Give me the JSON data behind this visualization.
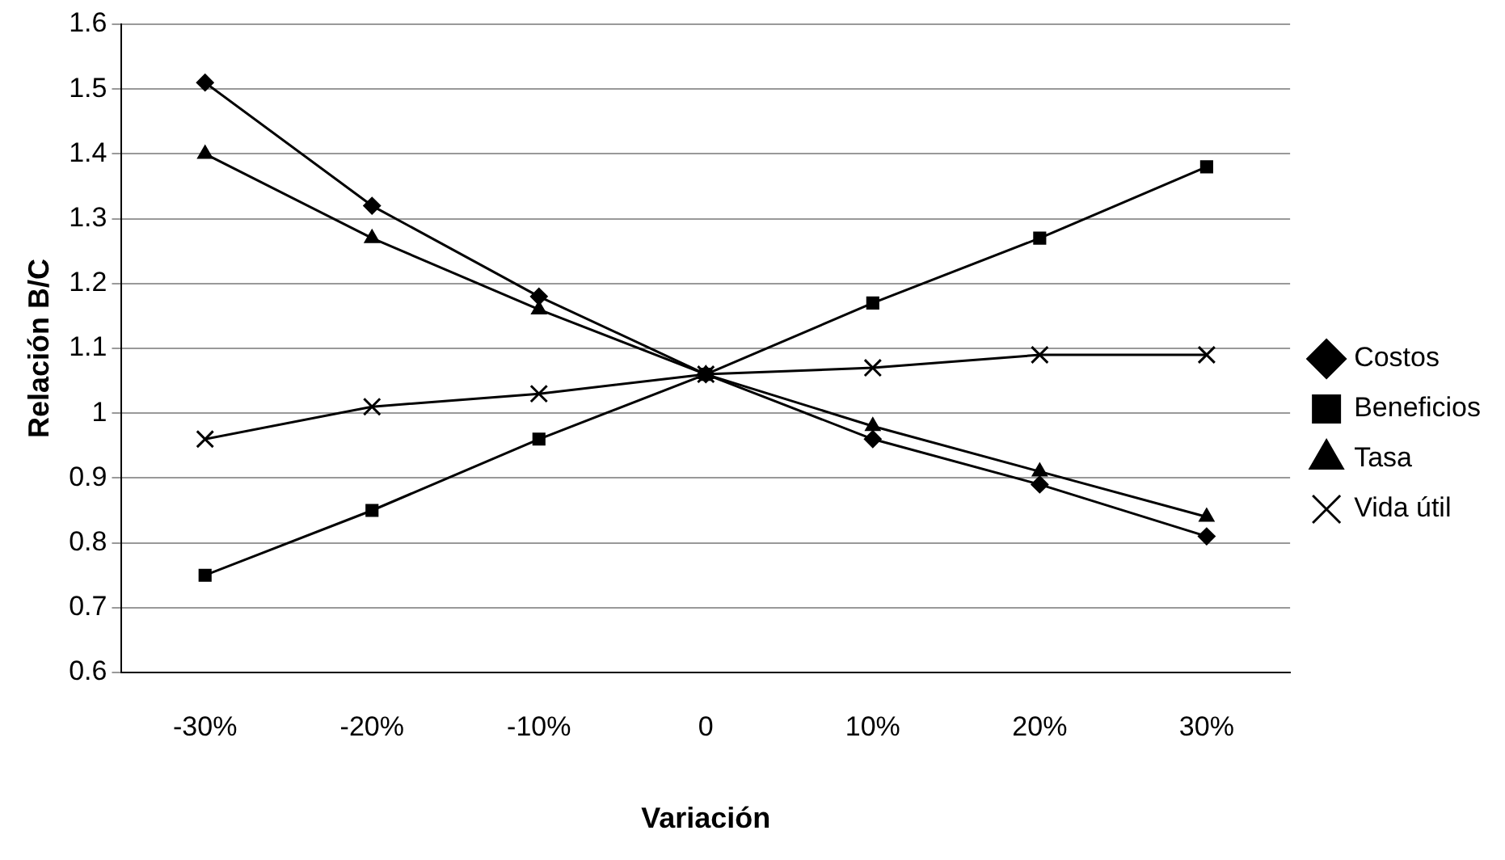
{
  "chart_data": {
    "type": "line",
    "xlabel": "Variación",
    "ylabel": "Relación B/C",
    "categories": [
      "-30%",
      "-20%",
      "-10%",
      "0",
      "10%",
      "20%",
      "30%"
    ],
    "series": [
      {
        "name": "Costos",
        "color": "#000000",
        "marker": "diamond",
        "values": [
          1.51,
          1.32,
          1.18,
          1.06,
          0.96,
          0.89,
          0.81
        ]
      },
      {
        "name": "Beneficios",
        "color": "#000000",
        "marker": "square",
        "values": [
          0.75,
          0.85,
          0.96,
          1.06,
          1.17,
          1.27,
          1.38
        ]
      },
      {
        "name": "Tasa",
        "color": "#000000",
        "marker": "triangle",
        "values": [
          1.4,
          1.27,
          1.16,
          1.06,
          0.98,
          0.91,
          0.84
        ]
      },
      {
        "name": "Vida útil",
        "color": "#000000",
        "marker": "cross",
        "values": [
          0.96,
          1.01,
          1.03,
          1.06,
          1.07,
          1.09,
          1.09
        ]
      }
    ],
    "ylim": [
      0.6,
      1.6
    ],
    "yticks": [
      0.6,
      0.7,
      0.8,
      0.9,
      1,
      1.1,
      1.2,
      1.3,
      1.4,
      1.5,
      1.6
    ],
    "grid": "y",
    "legend": "right",
    "line_style": "solid"
  }
}
